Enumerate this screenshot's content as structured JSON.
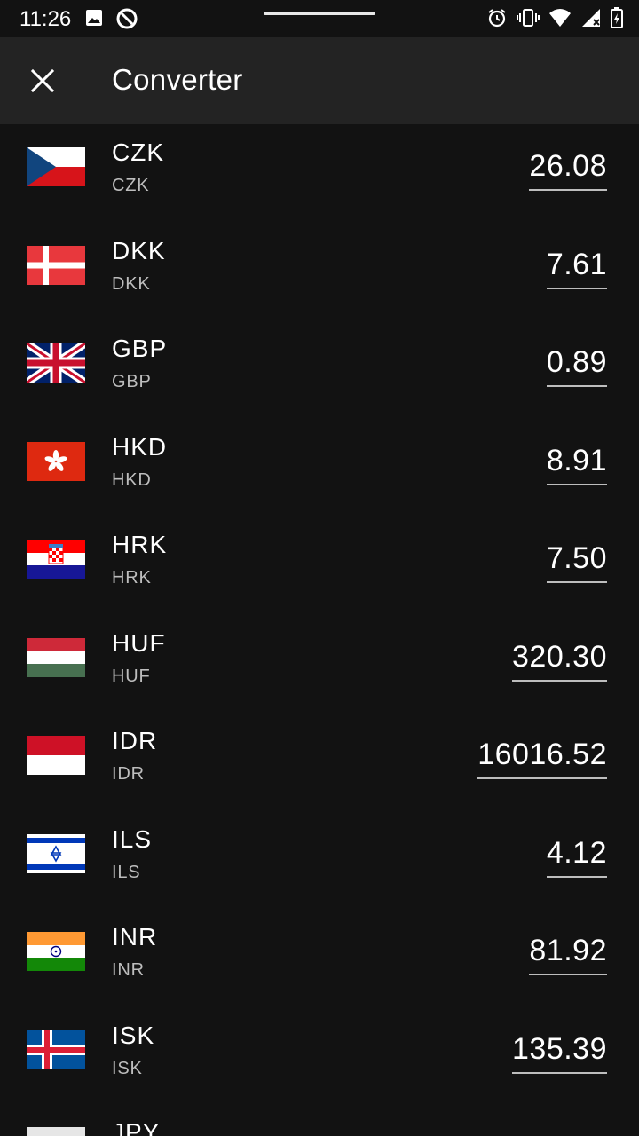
{
  "status_bar": {
    "time": "11:26",
    "icons_left": [
      "image-icon",
      "do-not-disturb-icon"
    ],
    "icons_right": [
      "alarm-icon",
      "vibrate-icon",
      "wifi-icon",
      "signal-icon",
      "battery-icon"
    ]
  },
  "toolbar": {
    "title": "Converter",
    "close_icon": "close-icon"
  },
  "currencies": [
    {
      "code": "CZK",
      "name": "CZK",
      "amount": "26.08",
      "flag": "cz"
    },
    {
      "code": "DKK",
      "name": "DKK",
      "amount": "7.61",
      "flag": "dk"
    },
    {
      "code": "GBP",
      "name": "GBP",
      "amount": "0.89",
      "flag": "gb"
    },
    {
      "code": "HKD",
      "name": "HKD",
      "amount": "8.91",
      "flag": "hk"
    },
    {
      "code": "HRK",
      "name": "HRK",
      "amount": "7.50",
      "flag": "hr"
    },
    {
      "code": "HUF",
      "name": "HUF",
      "amount": "320.30",
      "flag": "hu"
    },
    {
      "code": "IDR",
      "name": "IDR",
      "amount": "16016.52",
      "flag": "id"
    },
    {
      "code": "ILS",
      "name": "ILS",
      "amount": "4.12",
      "flag": "il"
    },
    {
      "code": "INR",
      "name": "INR",
      "amount": "81.92",
      "flag": "in"
    },
    {
      "code": "ISK",
      "name": "ISK",
      "amount": "135.39",
      "flag": "is"
    }
  ],
  "partial_row": {
    "code": "JPY"
  }
}
